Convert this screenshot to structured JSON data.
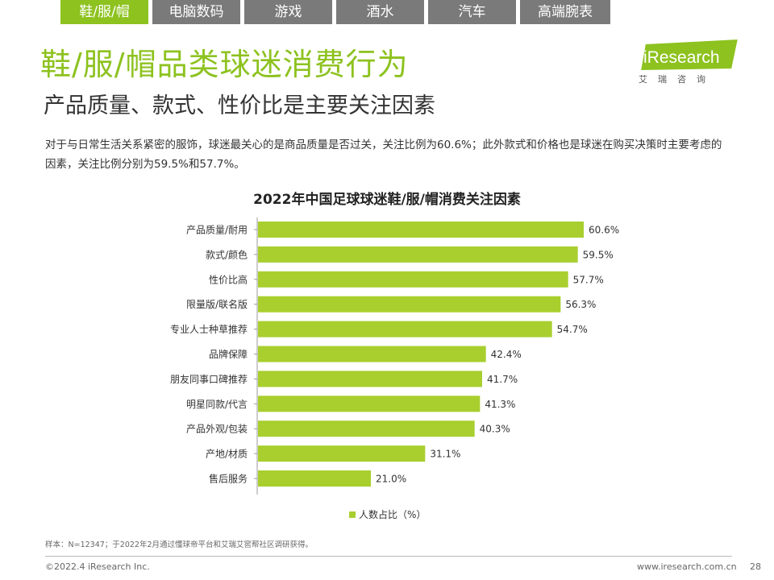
{
  "tabs": [
    {
      "label": "鞋/服/帽",
      "active": true
    },
    {
      "label": "电脑数码",
      "active": false
    },
    {
      "label": "游戏",
      "active": false
    },
    {
      "label": "酒水",
      "active": false
    },
    {
      "label": "汽车",
      "active": false
    },
    {
      "label": "高端腕表",
      "active": false
    }
  ],
  "title": "鞋/服/帽品类球迷消费行为",
  "subtitle": "产品质量、款式、性价比是主要关注因素",
  "description": "对于与日常生活关系紧密的服饰，球迷最关心的是商品质量是否过关，关注比例为60.6%；此外款式和价格也是球迷在购买决策时主要考虑的因素，关注比例分别为59.5%和57.7%。",
  "logo": {
    "text": "iResearch",
    "sub": "艾瑞咨询"
  },
  "colors": {
    "accent": "#8dc21f",
    "bar": "#a8cf2e",
    "tab_inactive": "#7a7a7a"
  },
  "chart_data": {
    "type": "bar",
    "orientation": "horizontal",
    "title": "2022年中国足球球迷鞋/服/帽消费关注因素",
    "categories": [
      "产品质量/耐用",
      "款式/颜色",
      "性价比高",
      "限量版/联名版",
      "专业人士种草推荐",
      "品牌保障",
      "朋友同事口碑推荐",
      "明星同款/代言",
      "产品外观/包装",
      "产地/材质",
      "售后服务"
    ],
    "series": [
      {
        "name": "人数占比（%）",
        "values": [
          60.6,
          59.5,
          57.7,
          56.3,
          54.7,
          42.4,
          41.7,
          41.3,
          40.3,
          31.1,
          21.0
        ]
      }
    ],
    "value_suffix": "%",
    "xlim": [
      0,
      70
    ],
    "grid": false,
    "legend_position": "bottom"
  },
  "footnote": "样本：N=12347；于2022年2月通过懂球帝平台和艾瑞艾窖帮社区调研获得。",
  "copyright": "©2022.4 iResearch Inc.",
  "website": "www.iresearch.com.cn",
  "page_number": "28"
}
